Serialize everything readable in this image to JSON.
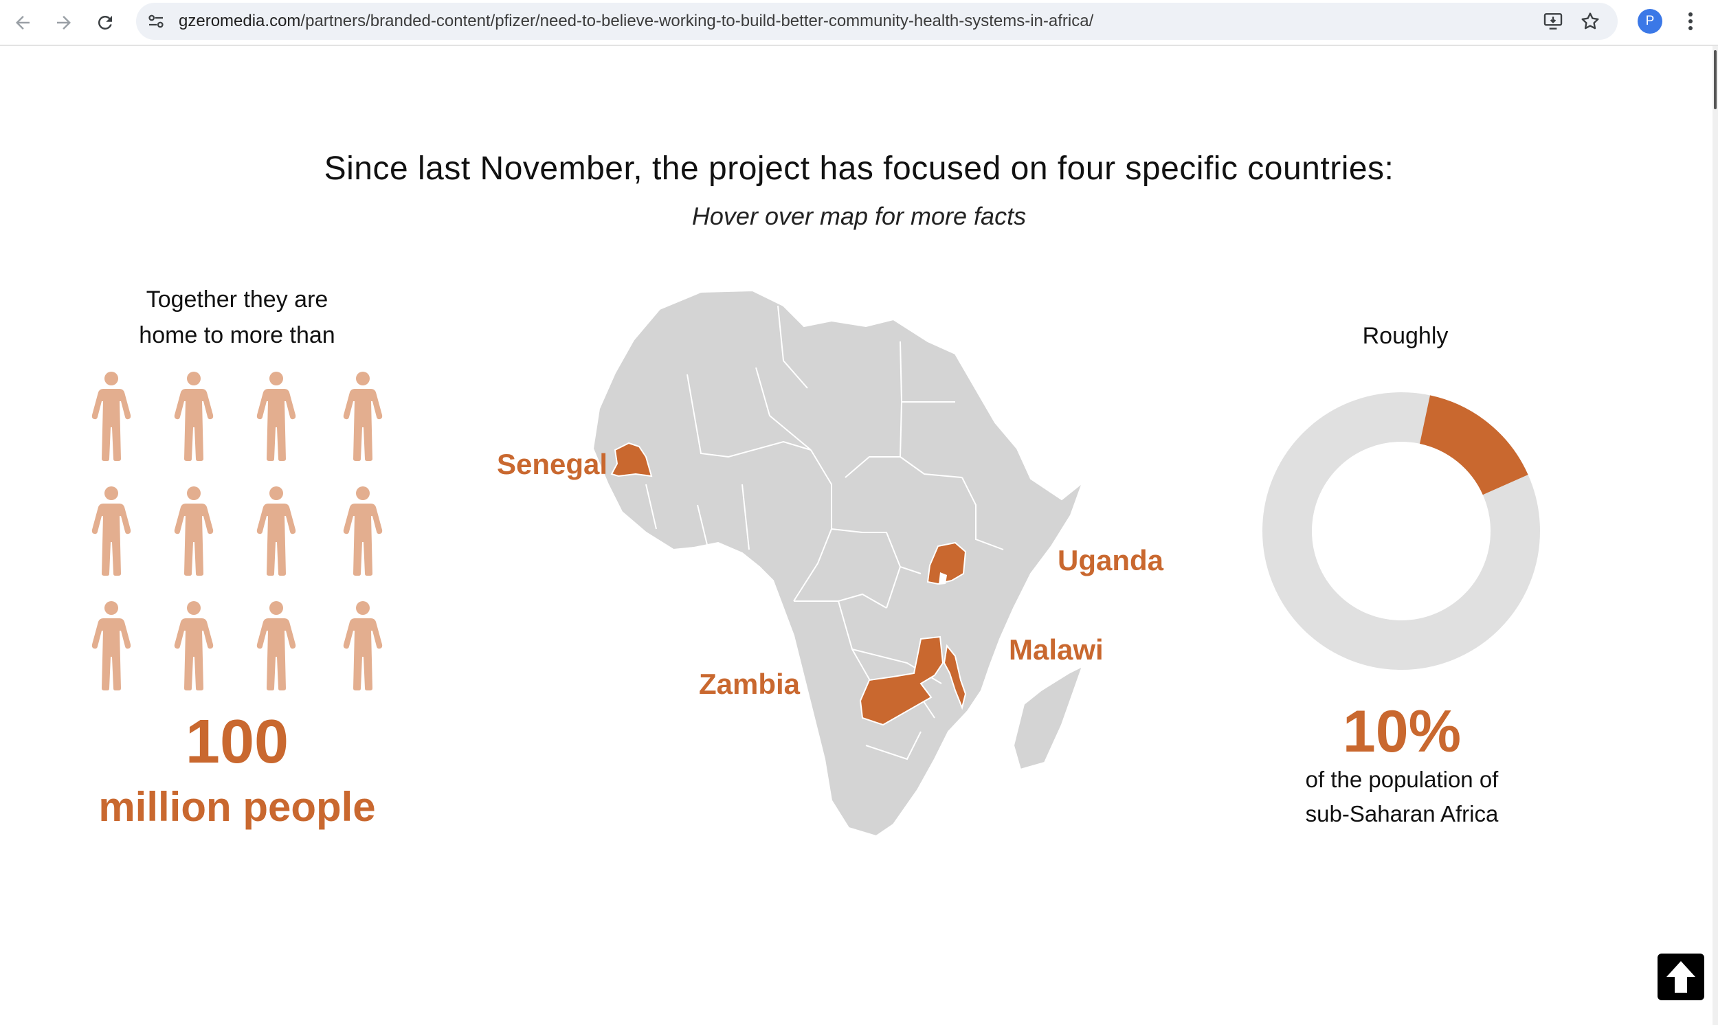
{
  "browser": {
    "url_host": "gzeromedia.com",
    "url_path": "/partners/branded-content/pfizer/need-to-believe-working-to-build-better-community-health-systems-in-africa/",
    "profile_initial": "P"
  },
  "page": {
    "headline": "Since last November, the project has focused on four specific countries:",
    "subhead": "Hover over map for more facts"
  },
  "left_panel": {
    "intro_line1": "Together they are",
    "intro_line2": "home to more than",
    "icon_count": 12,
    "number": "100",
    "unit": "million people"
  },
  "map": {
    "countries": [
      "Senegal",
      "Uganda",
      "Malawi",
      "Zambia"
    ],
    "base_color": "#d4d4d4",
    "highlight_color": "#c9682f"
  },
  "right_panel": {
    "intro": "Roughly",
    "percent_label": "10%",
    "percent_value": 10,
    "desc_line1": "of the population of",
    "desc_line2": "sub-Saharan Africa"
  },
  "colors": {
    "accent": "#c9682f",
    "person_icon": "#e3ae8f",
    "donut_track": "#e0e0e0"
  }
}
